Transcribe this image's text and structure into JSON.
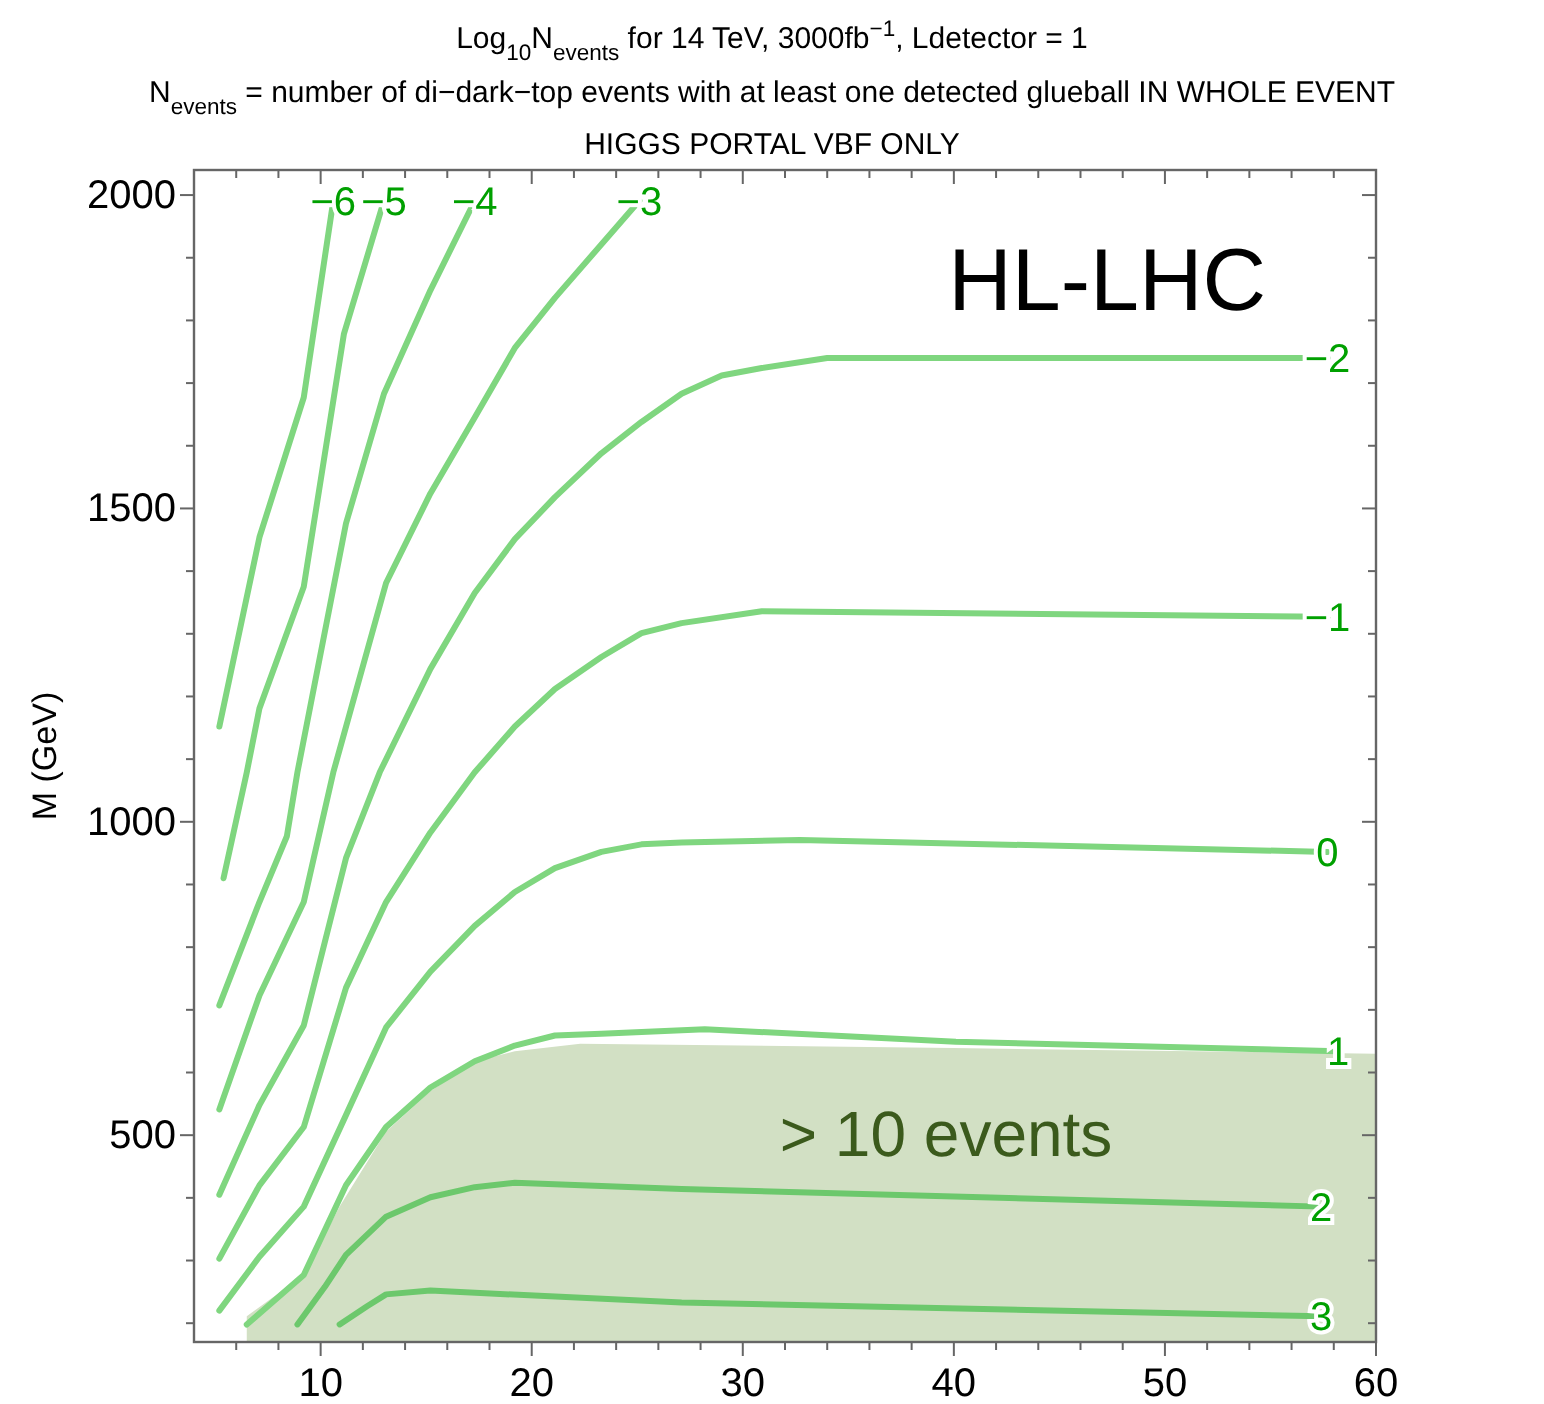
{
  "chart_data": {
    "type": "line",
    "title": "Log$_{10}$N$_{events}$ for 14 TeV, 3000fb$^{−1}$, Ldetector = 1",
    "subtitle": "N$_{events}$ = number of di−dark−top events with at least one detected glueball IN WHOLE EVENT\nHIGGS PORTAL VBF ONLY",
    "ylabel": "M (GeV)",
    "xlim": [
      4,
      60
    ],
    "ylim": [
      170,
      2040
    ],
    "xticks": [
      {
        "value": 6,
        "label": null
      },
      {
        "value": 8,
        "label": null
      },
      10,
      {
        "value": 12,
        "label": null
      },
      {
        "value": 14,
        "label": null
      },
      {
        "value": 16,
        "label": null
      },
      {
        "value": 18,
        "label": null
      },
      20,
      {
        "value": 22,
        "label": null
      },
      {
        "value": 24,
        "label": null
      },
      {
        "value": 26,
        "label": null
      },
      {
        "value": 28,
        "label": null
      },
      30,
      {
        "value": 32,
        "label": null
      },
      {
        "value": 34,
        "label": null
      },
      {
        "value": 36,
        "label": null
      },
      {
        "value": 38,
        "label": null
      },
      40,
      {
        "value": 42,
        "label": null
      },
      {
        "value": 44,
        "label": null
      },
      {
        "value": 46,
        "label": null
      },
      {
        "value": 48,
        "label": null
      },
      50,
      {
        "value": 52,
        "label": null
      },
      {
        "value": 54,
        "label": null
      },
      {
        "value": 56,
        "label": null
      },
      {
        "value": 58,
        "label": null
      },
      60
    ],
    "yticks": [
      {
        "value": 200,
        "label": null
      },
      {
        "value": 300,
        "label": null
      },
      {
        "value": 400,
        "label": null
      },
      500,
      {
        "value": 600,
        "label": null
      },
      {
        "value": 700,
        "label": null
      },
      {
        "value": 800,
        "label": null
      },
      {
        "value": 900,
        "label": null
      },
      1000,
      {
        "value": 1100,
        "label": null
      },
      {
        "value": 1200,
        "label": null
      },
      {
        "value": 1300,
        "label": null
      },
      {
        "value": 1400,
        "label": null
      },
      1500,
      {
        "value": 1600,
        "label": null
      },
      {
        "value": 1700,
        "label": null
      },
      {
        "value": 1800,
        "label": null
      },
      {
        "value": 1900,
        "label": null
      },
      2000
    ],
    "annotations": [
      "HL-LHC",
      "> 10 events"
    ],
    "series": [
      {
        "type": "area",
        "color": "#d2e0c4",
        "x": [
          6.5,
          9.2,
          10.9,
          13.1,
          15.2,
          17.3,
          19.2,
          22.3,
          40,
          60
        ],
        "values": [
          211,
          277,
          386,
          506,
          570,
          618,
          634,
          646,
          639,
          630
        ]
      },
      {
        "name": "−6",
        "color": "#7fd67f",
        "x": [
          5.2,
          7.1,
          9.2,
          10.6
        ],
        "values": [
          1152,
          1454,
          1677,
          1991
        ]
      },
      {
        "name": "−5",
        "color": "#7fd67f",
        "x": [
          5.4,
          6.5,
          7.1,
          9.2,
          11.1,
          13.0
        ],
        "values": [
          910,
          1079,
          1181,
          1375,
          1778,
          1991
        ]
      },
      {
        "name": "−4",
        "color": "#7fd67f",
        "x": [
          5.2,
          7.1,
          8.4,
          8.9,
          11.2,
          13.0,
          15.2,
          17.3
        ],
        "values": [
          707,
          872,
          977,
          1079,
          1476,
          1683,
          1848,
          1991
        ]
      },
      {
        "name": "−3",
        "color": "#7fd67f",
        "x": [
          5.2,
          7.1,
          9.2,
          10.6,
          13.1,
          15.2,
          17.3,
          19.2,
          21.1,
          25.1
        ],
        "values": [
          541,
          723,
          872,
          1079,
          1381,
          1524,
          1645,
          1756,
          1836,
          1991
        ]
      },
      {
        "name": "−2",
        "color": "#7fd67f",
        "x": [
          5.2,
          7.1,
          9.2,
          11.2,
          12.8,
          15.2,
          17.3,
          19.2,
          21.1,
          23.3,
          25.2,
          27.1,
          29.0,
          30.9,
          34.0,
          57.7
        ],
        "values": [
          405,
          548,
          675,
          942,
          1079,
          1244,
          1365,
          1451,
          1518,
          1588,
          1638,
          1683,
          1712,
          1724,
          1740,
          1740
        ]
      },
      {
        "name": "−1",
        "color": "#7fd67f",
        "x": [
          5.2,
          7.1,
          9.2,
          11.2,
          13.1,
          15.2,
          17.3,
          19.2,
          21.1,
          23.3,
          25.2,
          27.1,
          30.9,
          57.7
        ],
        "values": [
          303,
          420,
          513,
          735,
          872,
          983,
          1079,
          1152,
          1212,
          1263,
          1301,
          1317,
          1336,
          1327
        ]
      },
      {
        "name": "0",
        "color": "#7fd67f",
        "x": [
          5.2,
          7.1,
          9.2,
          11.2,
          13.1,
          15.2,
          17.3,
          19.2,
          21.1,
          23.3,
          25.2,
          27.1,
          32.7,
          57.7
        ],
        "values": [
          220,
          306,
          386,
          532,
          672,
          761,
          834,
          888,
          926,
          952,
          964,
          967,
          971,
          952
        ]
      },
      {
        "name": "1",
        "color": "#7fd67f",
        "x": [
          6.5,
          9.2,
          11.2,
          13.1,
          15.2,
          17.3,
          19.2,
          21.1,
          23.3,
          28.2,
          40.1,
          58.2
        ],
        "values": [
          198,
          277,
          420,
          513,
          576,
          618,
          643,
          659,
          662,
          669,
          649,
          634
        ]
      },
      {
        "name": "2",
        "color": "#6cc86c",
        "x": [
          8.9,
          10.2,
          11.2,
          13.1,
          15.2,
          17.3,
          19.2,
          27.1,
          57.4
        ],
        "values": [
          198,
          258,
          309,
          370,
          401,
          417,
          424,
          414,
          386
        ]
      },
      {
        "name": "3",
        "color": "#6cc86c",
        "x": [
          10.9,
          12.2,
          13.1,
          15.2,
          27.1,
          57.4
        ],
        "values": [
          198,
          227,
          246,
          252,
          233,
          211
        ]
      }
    ]
  }
}
